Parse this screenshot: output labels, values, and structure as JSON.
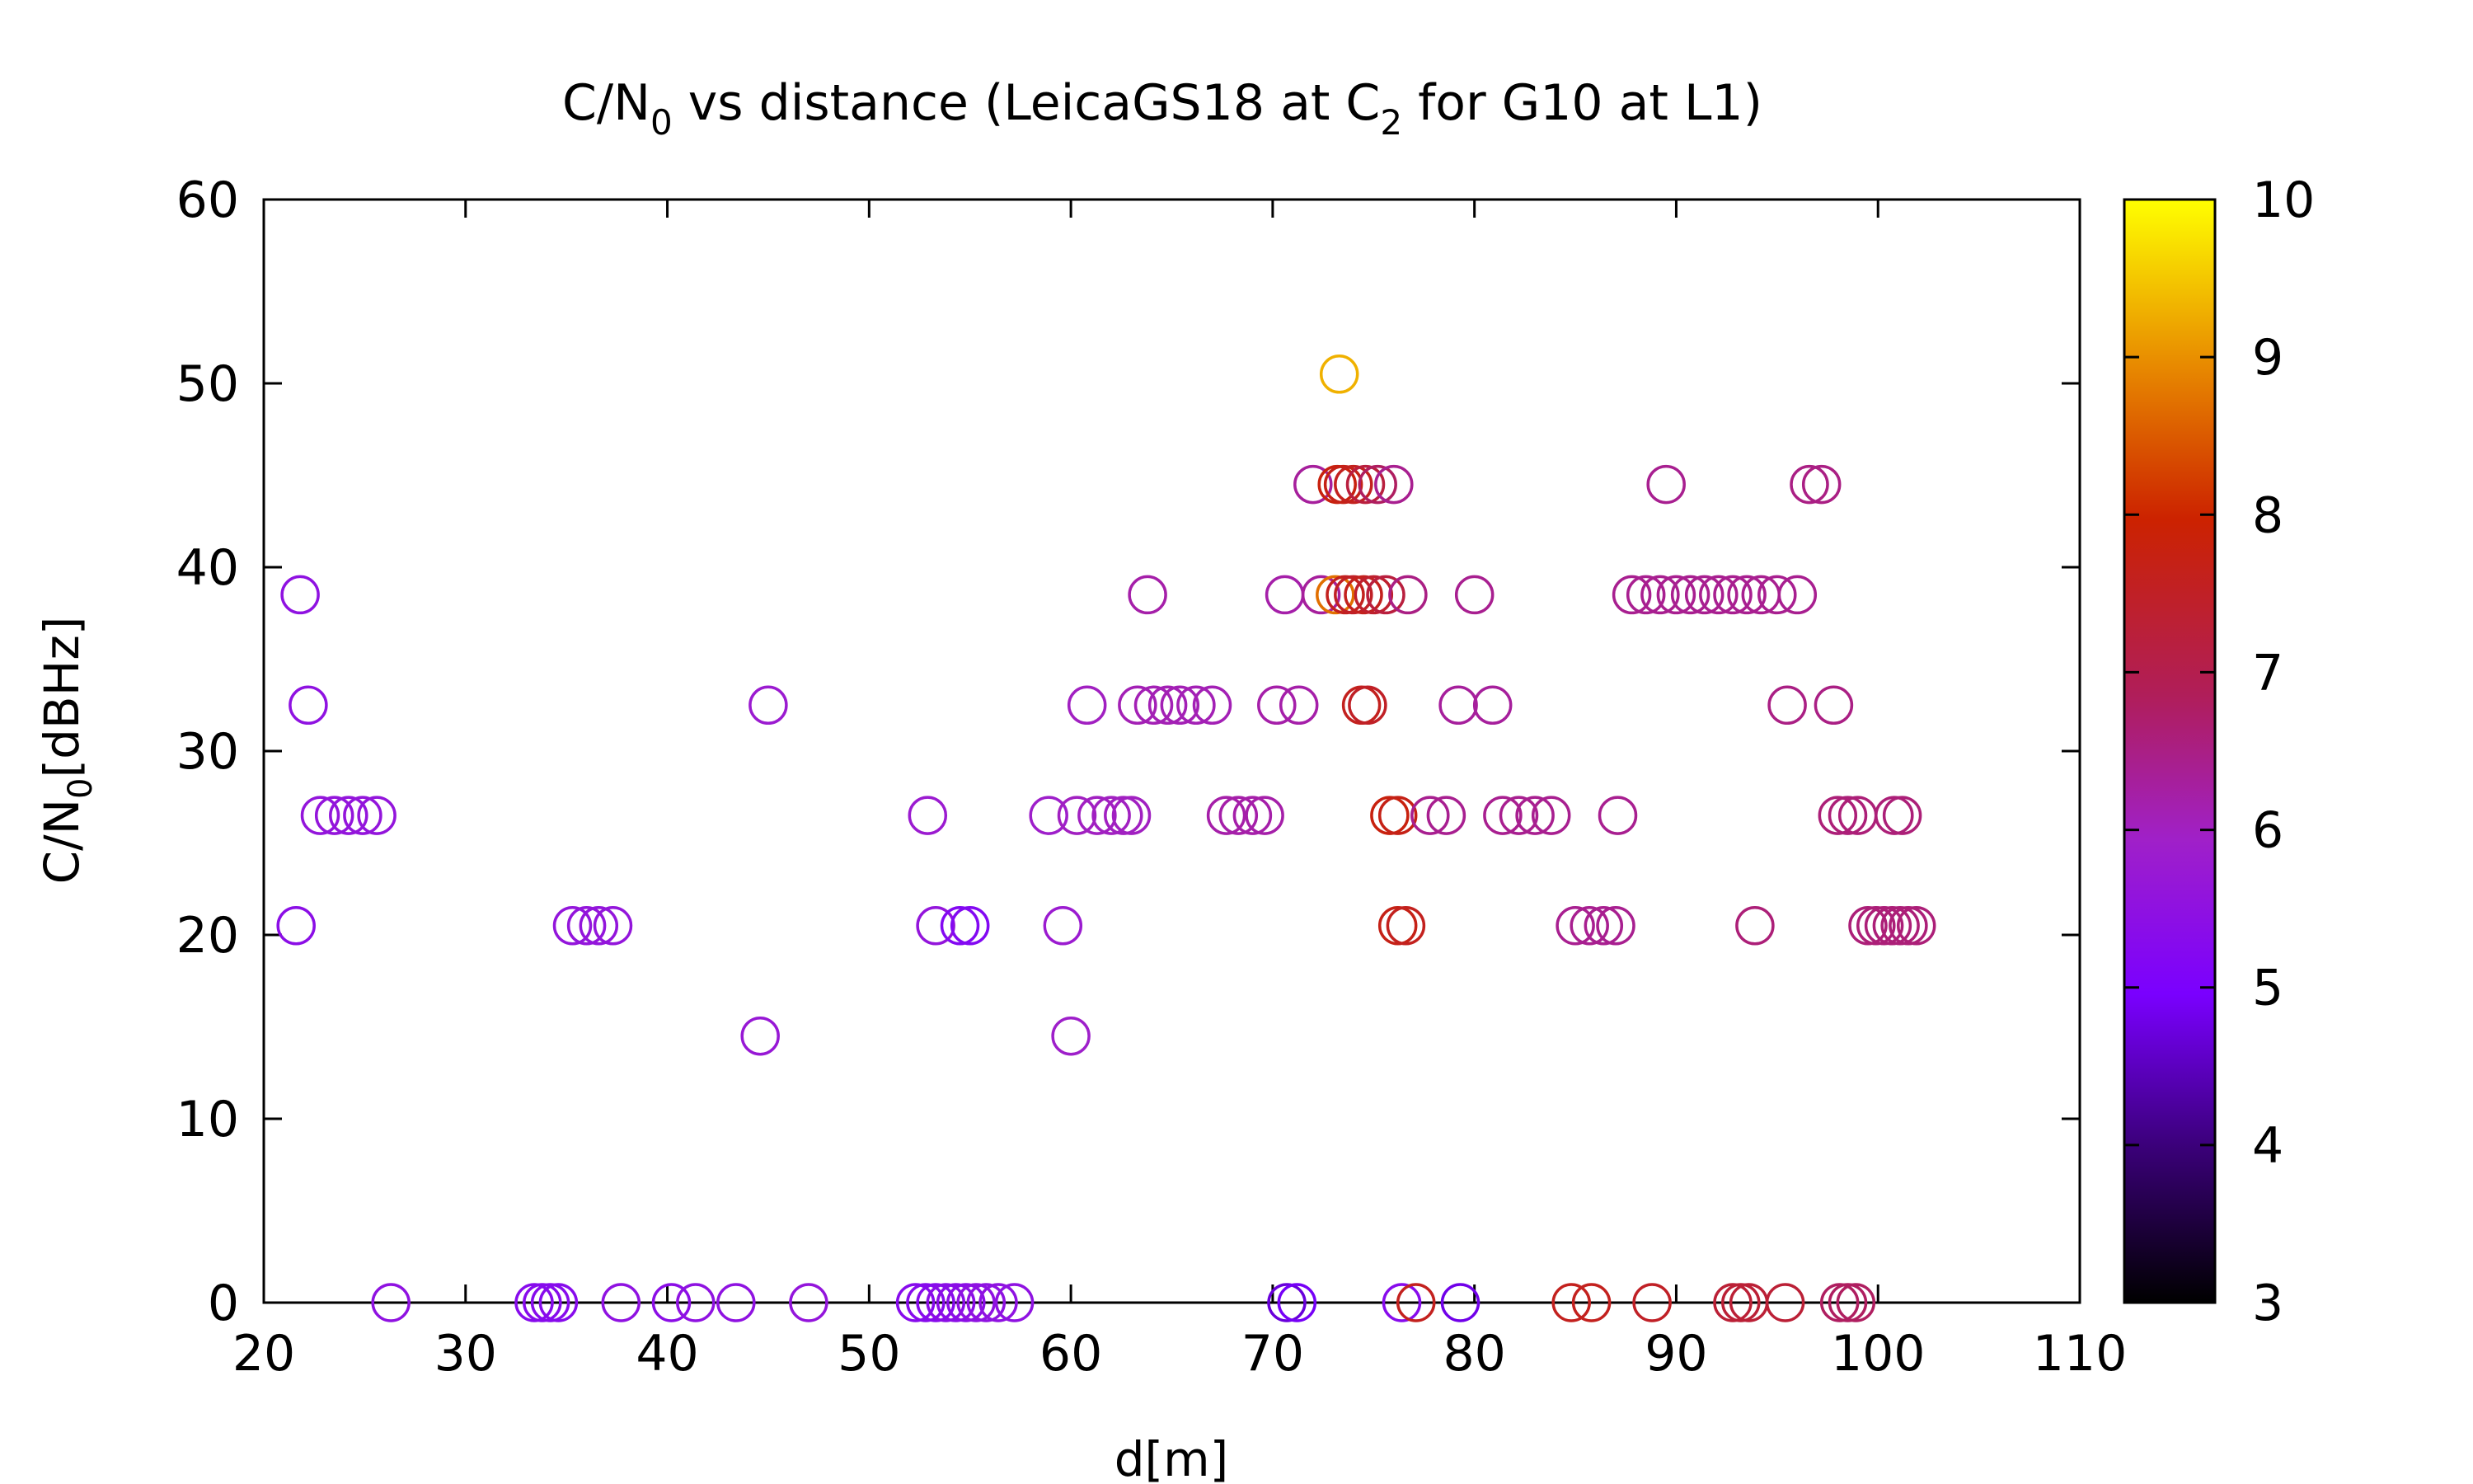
{
  "chart_data": {
    "type": "scatter",
    "title": {
      "main": "C/N",
      "sub0": "0",
      "mid": " vs distance (LeicaGS18 at C",
      "sub2": "2",
      "end": " for G10 at L1)"
    },
    "xlabel": "d[m]",
    "ylabel": {
      "main": "C/N",
      "sub": "0",
      "unit": "[dBHz]"
    },
    "xlim": [
      20,
      110
    ],
    "ylim": [
      0,
      60
    ],
    "xticks": [
      "20",
      "30",
      "40",
      "50",
      "60",
      "70",
      "80",
      "90",
      "100",
      "110"
    ],
    "yticks": [
      "0",
      "10",
      "20",
      "30",
      "40",
      "50",
      "60"
    ],
    "colorbar": {
      "range": [
        3,
        10
      ],
      "ticks": [
        "3",
        "4",
        "5",
        "6",
        "7",
        "8",
        "9",
        "10"
      ]
    },
    "marker": "open-circle",
    "points": [
      {
        "x": 73.3,
        "y": 50.5,
        "c": 9.3
      },
      {
        "x": 72,
        "y": 44.5,
        "c": 6.3
      },
      {
        "x": 73.2,
        "y": 44.5,
        "c": 7.8
      },
      {
        "x": 73.5,
        "y": 44.5,
        "c": 7.7
      },
      {
        "x": 74,
        "y": 44.5,
        "c": 7.6
      },
      {
        "x": 74.6,
        "y": 44.5,
        "c": 7.2
      },
      {
        "x": 75.2,
        "y": 44.5,
        "c": 6.8
      },
      {
        "x": 76,
        "y": 44.5,
        "c": 6.4
      },
      {
        "x": 89.5,
        "y": 44.5,
        "c": 6.4
      },
      {
        "x": 96.6,
        "y": 44.5,
        "c": 6.5
      },
      {
        "x": 97.2,
        "y": 44.5,
        "c": 6.5
      },
      {
        "x": 21.8,
        "y": 38.5,
        "c": 5.5
      },
      {
        "x": 63.8,
        "y": 38.5,
        "c": 6.2
      },
      {
        "x": 70.6,
        "y": 38.5,
        "c": 6.2
      },
      {
        "x": 72.4,
        "y": 38.5,
        "c": 6.3
      },
      {
        "x": 73.1,
        "y": 38.5,
        "c": 8.7
      },
      {
        "x": 73.6,
        "y": 38.5,
        "c": 7.6
      },
      {
        "x": 74,
        "y": 38.5,
        "c": 7.5
      },
      {
        "x": 74.5,
        "y": 38.5,
        "c": 7.6
      },
      {
        "x": 75,
        "y": 38.5,
        "c": 7.4
      },
      {
        "x": 75.6,
        "y": 38.5,
        "c": 7.2
      },
      {
        "x": 76.7,
        "y": 38.5,
        "c": 6.5
      },
      {
        "x": 80,
        "y": 38.5,
        "c": 6.4
      },
      {
        "x": 87.8,
        "y": 38.5,
        "c": 6.4
      },
      {
        "x": 88.5,
        "y": 38.5,
        "c": 6.4
      },
      {
        "x": 89.2,
        "y": 38.5,
        "c": 6.4
      },
      {
        "x": 90,
        "y": 38.5,
        "c": 6.4
      },
      {
        "x": 90.7,
        "y": 38.5,
        "c": 6.4
      },
      {
        "x": 91.4,
        "y": 38.5,
        "c": 6.4
      },
      {
        "x": 92.1,
        "y": 38.5,
        "c": 6.4
      },
      {
        "x": 92.8,
        "y": 38.5,
        "c": 6.4
      },
      {
        "x": 93.5,
        "y": 38.5,
        "c": 6.4
      },
      {
        "x": 94.2,
        "y": 38.5,
        "c": 6.4
      },
      {
        "x": 95,
        "y": 38.5,
        "c": 6.4
      },
      {
        "x": 96,
        "y": 38.5,
        "c": 6.4
      },
      {
        "x": 22.2,
        "y": 32.5,
        "c": 5.5
      },
      {
        "x": 45,
        "y": 32.5,
        "c": 5.8
      },
      {
        "x": 60.8,
        "y": 32.5,
        "c": 6.0
      },
      {
        "x": 63.3,
        "y": 32.5,
        "c": 6.1
      },
      {
        "x": 64.1,
        "y": 32.5,
        "c": 6.1
      },
      {
        "x": 64.8,
        "y": 32.5,
        "c": 6.1
      },
      {
        "x": 65.4,
        "y": 32.5,
        "c": 6.1
      },
      {
        "x": 66.2,
        "y": 32.5,
        "c": 6.1
      },
      {
        "x": 67,
        "y": 32.5,
        "c": 6.1
      },
      {
        "x": 70.2,
        "y": 32.5,
        "c": 6.2
      },
      {
        "x": 71.3,
        "y": 32.5,
        "c": 6.2
      },
      {
        "x": 74.4,
        "y": 32.5,
        "c": 7.6
      },
      {
        "x": 74.7,
        "y": 32.5,
        "c": 7.5
      },
      {
        "x": 79.2,
        "y": 32.5,
        "c": 6.3
      },
      {
        "x": 80.9,
        "y": 32.5,
        "c": 6.3
      },
      {
        "x": 95.5,
        "y": 32.5,
        "c": 6.5
      },
      {
        "x": 97.8,
        "y": 32.5,
        "c": 6.5
      },
      {
        "x": 22.8,
        "y": 26.5,
        "c": 5.6
      },
      {
        "x": 23.5,
        "y": 26.5,
        "c": 5.6
      },
      {
        "x": 24.2,
        "y": 26.5,
        "c": 5.6
      },
      {
        "x": 24.9,
        "y": 26.5,
        "c": 5.6
      },
      {
        "x": 25.6,
        "y": 26.5,
        "c": 5.6
      },
      {
        "x": 52.9,
        "y": 26.5,
        "c": 5.8
      },
      {
        "x": 58.9,
        "y": 26.5,
        "c": 5.9
      },
      {
        "x": 60.3,
        "y": 26.5,
        "c": 6.0
      },
      {
        "x": 61.3,
        "y": 26.5,
        "c": 6.0
      },
      {
        "x": 62,
        "y": 26.5,
        "c": 6.0
      },
      {
        "x": 62.6,
        "y": 26.5,
        "c": 6.0
      },
      {
        "x": 63,
        "y": 26.5,
        "c": 6.0
      },
      {
        "x": 67.7,
        "y": 26.5,
        "c": 6.2
      },
      {
        "x": 68.3,
        "y": 26.5,
        "c": 6.2
      },
      {
        "x": 69,
        "y": 26.5,
        "c": 6.2
      },
      {
        "x": 69.6,
        "y": 26.5,
        "c": 6.2
      },
      {
        "x": 75.8,
        "y": 26.5,
        "c": 7.8
      },
      {
        "x": 76.2,
        "y": 26.5,
        "c": 7.7
      },
      {
        "x": 77.8,
        "y": 26.5,
        "c": 6.4
      },
      {
        "x": 78.6,
        "y": 26.5,
        "c": 6.4
      },
      {
        "x": 81.4,
        "y": 26.5,
        "c": 6.4
      },
      {
        "x": 82.2,
        "y": 26.5,
        "c": 6.4
      },
      {
        "x": 83,
        "y": 26.5,
        "c": 6.4
      },
      {
        "x": 83.8,
        "y": 26.5,
        "c": 6.4
      },
      {
        "x": 87.1,
        "y": 26.5,
        "c": 6.4
      },
      {
        "x": 98,
        "y": 26.5,
        "c": 6.6
      },
      {
        "x": 98.5,
        "y": 26.5,
        "c": 6.6
      },
      {
        "x": 99,
        "y": 26.5,
        "c": 6.6
      },
      {
        "x": 100.8,
        "y": 26.5,
        "c": 6.6
      },
      {
        "x": 101.2,
        "y": 26.5,
        "c": 6.6
      },
      {
        "x": 21.6,
        "y": 20.5,
        "c": 5.4
      },
      {
        "x": 35.3,
        "y": 20.5,
        "c": 5.6
      },
      {
        "x": 36,
        "y": 20.5,
        "c": 5.6
      },
      {
        "x": 36.6,
        "y": 20.5,
        "c": 5.6
      },
      {
        "x": 37.3,
        "y": 20.5,
        "c": 5.6
      },
      {
        "x": 53.3,
        "y": 20.5,
        "c": 5.6
      },
      {
        "x": 54.5,
        "y": 20.5,
        "c": 5.2
      },
      {
        "x": 55,
        "y": 20.5,
        "c": 5.2
      },
      {
        "x": 59.6,
        "y": 20.5,
        "c": 5.8
      },
      {
        "x": 76.2,
        "y": 20.5,
        "c": 7.7
      },
      {
        "x": 76.6,
        "y": 20.5,
        "c": 7.6
      },
      {
        "x": 85,
        "y": 20.5,
        "c": 6.4
      },
      {
        "x": 85.7,
        "y": 20.5,
        "c": 6.4
      },
      {
        "x": 86.4,
        "y": 20.5,
        "c": 6.4
      },
      {
        "x": 87,
        "y": 20.5,
        "c": 6.4
      },
      {
        "x": 93.9,
        "y": 20.5,
        "c": 6.6
      },
      {
        "x": 99.5,
        "y": 20.5,
        "c": 6.6
      },
      {
        "x": 99.9,
        "y": 20.5,
        "c": 6.6
      },
      {
        "x": 100.3,
        "y": 20.5,
        "c": 6.6
      },
      {
        "x": 100.7,
        "y": 20.5,
        "c": 6.6
      },
      {
        "x": 101.1,
        "y": 20.5,
        "c": 6.6
      },
      {
        "x": 101.5,
        "y": 20.5,
        "c": 6.6
      },
      {
        "x": 101.9,
        "y": 20.5,
        "c": 6.6
      },
      {
        "x": 44.6,
        "y": 14.5,
        "c": 5.7
      },
      {
        "x": 60,
        "y": 14.5,
        "c": 5.9
      },
      {
        "x": 26.3,
        "y": 0,
        "c": 5.5
      },
      {
        "x": 33.4,
        "y": 0,
        "c": 5.3
      },
      {
        "x": 33.8,
        "y": 0,
        "c": 5.3
      },
      {
        "x": 34.2,
        "y": 0,
        "c": 5.3
      },
      {
        "x": 34.6,
        "y": 0,
        "c": 5.3
      },
      {
        "x": 37.7,
        "y": 0,
        "c": 5.5
      },
      {
        "x": 40.2,
        "y": 0,
        "c": 5.4
      },
      {
        "x": 41.4,
        "y": 0,
        "c": 5.5
      },
      {
        "x": 43.4,
        "y": 0,
        "c": 5.5
      },
      {
        "x": 47,
        "y": 0,
        "c": 5.6
      },
      {
        "x": 52.3,
        "y": 0,
        "c": 5.3
      },
      {
        "x": 52.8,
        "y": 0,
        "c": 5.3
      },
      {
        "x": 53.3,
        "y": 0,
        "c": 5.3
      },
      {
        "x": 53.8,
        "y": 0,
        "c": 5.4
      },
      {
        "x": 54.3,
        "y": 0,
        "c": 5.4
      },
      {
        "x": 54.8,
        "y": 0,
        "c": 5.4
      },
      {
        "x": 55.3,
        "y": 0,
        "c": 5.5
      },
      {
        "x": 55.8,
        "y": 0,
        "c": 5.5
      },
      {
        "x": 56.4,
        "y": 0,
        "c": 5.5
      },
      {
        "x": 57.2,
        "y": 0,
        "c": 5.5
      },
      {
        "x": 70.7,
        "y": 0,
        "c": 4.7
      },
      {
        "x": 71.2,
        "y": 0,
        "c": 4.9
      },
      {
        "x": 76.4,
        "y": 0,
        "c": 5.3
      },
      {
        "x": 77.1,
        "y": 0,
        "c": 7.6
      },
      {
        "x": 79.3,
        "y": 0,
        "c": 4.8
      },
      {
        "x": 84.8,
        "y": 0,
        "c": 7.6
      },
      {
        "x": 85.8,
        "y": 0,
        "c": 7.6
      },
      {
        "x": 88.8,
        "y": 0,
        "c": 7.5
      },
      {
        "x": 92.8,
        "y": 0,
        "c": 7.3
      },
      {
        "x": 93.2,
        "y": 0,
        "c": 7.3
      },
      {
        "x": 93.6,
        "y": 0,
        "c": 7.3
      },
      {
        "x": 95.4,
        "y": 0,
        "c": 7.3
      },
      {
        "x": 98.1,
        "y": 0,
        "c": 6.8
      },
      {
        "x": 98.5,
        "y": 0,
        "c": 6.8
      },
      {
        "x": 98.9,
        "y": 0,
        "c": 6.8
      }
    ]
  }
}
